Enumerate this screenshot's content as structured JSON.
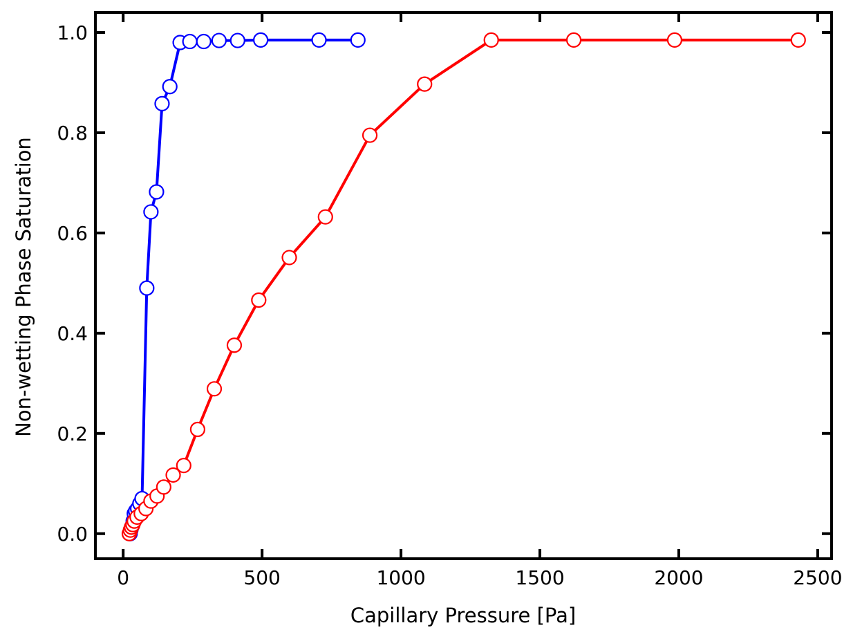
{
  "chart_data": {
    "type": "line",
    "title": "",
    "xlabel": "Capillary Pressure [Pa]",
    "ylabel": "Non-wetting Phase Saturation",
    "xlim": [
      -100,
      2550
    ],
    "ylim": [
      -0.05,
      1.04
    ],
    "xticks": [
      0,
      500,
      1000,
      1500,
      2000,
      2500
    ],
    "xtick_labels": [
      "0",
      "500",
      "1000",
      "1500",
      "2000",
      "2500"
    ],
    "yticks": [
      0.0,
      0.2,
      0.4,
      0.6,
      0.8,
      1.0
    ],
    "ytick_labels": [
      "0.0",
      "0.2",
      "0.4",
      "0.6",
      "0.8",
      "1.0"
    ],
    "grid": false,
    "legend": "none",
    "series": [
      {
        "color": "#0000ff",
        "marker": "open-circle",
        "x": [
          25,
          28,
          32,
          36,
          40,
          45,
          52,
          60,
          68,
          85,
          100,
          120,
          140,
          168,
          205,
          240,
          290,
          345,
          412,
          495,
          705,
          845
        ],
        "y": [
          0.0,
          0.008,
          0.015,
          0.025,
          0.04,
          0.045,
          0.05,
          0.06,
          0.07,
          0.49,
          0.642,
          0.682,
          0.858,
          0.892,
          0.98,
          0.982,
          0.982,
          0.984,
          0.984,
          0.985,
          0.985,
          0.985
        ]
      },
      {
        "color": "#ff0000",
        "marker": "open-circle",
        "x": [
          22,
          26,
          30,
          35,
          40,
          50,
          65,
          82,
          100,
          122,
          146,
          180,
          218,
          268,
          328,
          400,
          488,
          598,
          728,
          888,
          1085,
          1325,
          1622,
          1985,
          2430
        ],
        "y": [
          0.0,
          0.007,
          0.013,
          0.018,
          0.025,
          0.033,
          0.04,
          0.05,
          0.065,
          0.075,
          0.093,
          0.117,
          0.136,
          0.208,
          0.289,
          0.376,
          0.466,
          0.551,
          0.632,
          0.795,
          0.897,
          0.985,
          0.985,
          0.985,
          0.985
        ]
      }
    ]
  }
}
